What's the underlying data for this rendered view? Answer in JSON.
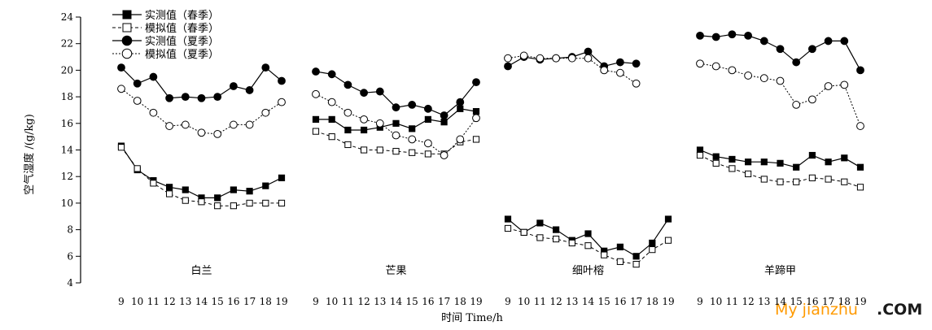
{
  "chart_data": {
    "type": "line",
    "ylabel": "空气湿度 /(g/kg)",
    "xlabel": "时间 Time/h",
    "ylim": [
      4,
      24
    ],
    "yticks": [
      4,
      6,
      8,
      10,
      12,
      14,
      16,
      18,
      20,
      22,
      24
    ],
    "grid": false,
    "legend_position": "top-left",
    "legend": [
      {
        "label": "实测值（春季）",
        "marker": "filled-square",
        "line": "solid"
      },
      {
        "label": "模拟值（春季）",
        "marker": "open-square",
        "line": "dashed"
      },
      {
        "label": "实测值（夏季）",
        "marker": "filled-circle",
        "line": "solid"
      },
      {
        "label": "模拟值（夏季）",
        "marker": "open-circle",
        "line": "dotted"
      }
    ],
    "groups": [
      {
        "name": "白兰",
        "x": [
          "9",
          "10",
          "11",
          "12",
          "13",
          "14",
          "15",
          "16",
          "17",
          "18",
          "19"
        ],
        "series": [
          {
            "name": "实测值（春季）",
            "values": [
              14.3,
              12.5,
              11.7,
              11.2,
              11.0,
              10.4,
              10.4,
              11.0,
              10.9,
              11.3,
              11.9
            ]
          },
          {
            "name": "模拟值（春季）",
            "values": [
              14.2,
              12.6,
              11.5,
              10.7,
              10.2,
              10.1,
              9.8,
              9.8,
              10.0,
              10.0,
              10.0
            ]
          },
          {
            "name": "实测值（夏季）",
            "values": [
              20.2,
              19.0,
              19.5,
              17.9,
              18.0,
              17.9,
              18.0,
              18.8,
              18.5,
              20.2,
              19.2
            ]
          },
          {
            "name": "模拟值（夏季）",
            "values": [
              18.6,
              17.7,
              16.8,
              15.8,
              15.9,
              15.3,
              15.2,
              15.9,
              15.9,
              16.8,
              17.6
            ]
          }
        ]
      },
      {
        "name": "芒果",
        "x": [
          "9",
          "10",
          "11",
          "12",
          "13",
          "14",
          "15",
          "16",
          "17",
          "18",
          "19"
        ],
        "series": [
          {
            "name": "实测值（春季）",
            "values": [
              16.3,
              16.3,
              15.5,
              15.5,
              15.7,
              16.0,
              15.6,
              16.3,
              16.1,
              17.1,
              16.9
            ]
          },
          {
            "name": "模拟值（春季）",
            "values": [
              15.4,
              15.0,
              14.4,
              14.0,
              14.0,
              13.9,
              13.8,
              13.7,
              13.7,
              14.6,
              14.8
            ]
          },
          {
            "name": "实测值（夏季）",
            "values": [
              19.9,
              19.7,
              18.9,
              18.3,
              18.4,
              17.2,
              17.4,
              17.1,
              16.6,
              17.6,
              19.1
            ]
          },
          {
            "name": "模拟值（夏季）",
            "values": [
              18.2,
              17.6,
              16.8,
              16.3,
              16.0,
              15.1,
              14.8,
              14.5,
              13.6,
              14.8,
              16.4
            ]
          }
        ]
      },
      {
        "name": "细叶榕",
        "x": [
          "9",
          "10",
          "11",
          "12",
          "13",
          "14",
          "15",
          "16",
          "17",
          "18",
          "19"
        ],
        "series": [
          {
            "name": "实测值（春季）",
            "values": [
              8.8,
              7.8,
              8.5,
              8.0,
              7.2,
              7.7,
              6.4,
              6.7,
              6.0,
              7.0,
              8.8
            ]
          },
          {
            "name": "模拟值（春季）",
            "values": [
              8.1,
              7.8,
              7.4,
              7.3,
              7.0,
              6.8,
              6.1,
              5.6,
              5.4,
              6.5,
              7.2
            ]
          },
          {
            "name": "实测值（夏季）",
            "values": [
              20.3,
              21.0,
              20.8,
              20.9,
              21.0,
              21.4,
              20.3,
              20.6,
              20.5,
              null,
              null
            ]
          },
          {
            "name": "模拟值（夏季）",
            "values": [
              20.9,
              21.1,
              20.9,
              20.9,
              20.9,
              20.9,
              20.0,
              19.8,
              19.0,
              null,
              null
            ]
          }
        ]
      },
      {
        "name": "羊蹄甲",
        "x": [
          "9",
          "10",
          "11",
          "12",
          "13",
          "14",
          "15",
          "16",
          "17",
          "18",
          "19"
        ],
        "series": [
          {
            "name": "实测值（春季）",
            "values": [
              14.0,
              13.5,
              13.3,
              13.1,
              13.1,
              13.0,
              12.7,
              13.6,
              13.1,
              13.4,
              12.7
            ]
          },
          {
            "name": "模拟值（春季）",
            "values": [
              13.6,
              13.0,
              12.6,
              12.2,
              11.8,
              11.6,
              11.6,
              11.9,
              11.8,
              11.6,
              11.2
            ]
          },
          {
            "name": "实测值（夏季）",
            "values": [
              22.6,
              22.5,
              22.7,
              22.6,
              22.2,
              21.6,
              20.6,
              21.6,
              22.2,
              22.2,
              20.0
            ]
          },
          {
            "name": "模拟值（夏季）",
            "values": [
              20.5,
              20.3,
              20.0,
              19.6,
              19.4,
              19.2,
              17.4,
              17.8,
              18.8,
              18.9,
              15.8
            ]
          }
        ]
      }
    ]
  },
  "watermark": {
    "text": "My jianzhu",
    "suffix": ".COM"
  }
}
